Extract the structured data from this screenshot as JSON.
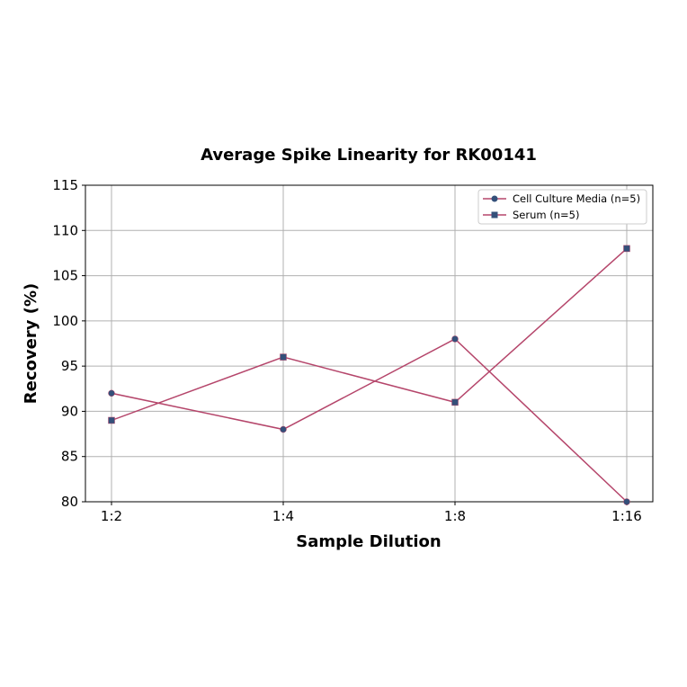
{
  "chart_data": {
    "type": "line",
    "title": "Average Spike Linearity for RK00141",
    "xlabel": "Sample Dilution",
    "ylabel": "Recovery (%)",
    "categories": [
      "1:2",
      "1:4",
      "1:8",
      "1:16"
    ],
    "ylim": [
      80,
      115
    ],
    "yticks": [
      80,
      85,
      90,
      95,
      100,
      105,
      110,
      115
    ],
    "grid": true,
    "legend_position": "upper right",
    "series": [
      {
        "name": "Cell Culture Media (n=5)",
        "marker": "circle",
        "values": [
          92,
          88,
          98,
          80
        ]
      },
      {
        "name": "Serum (n=5)",
        "marker": "square",
        "values": [
          89,
          96,
          91,
          108
        ]
      }
    ],
    "colors": {
      "line": "#b5466b",
      "marker": "#34507a"
    }
  }
}
